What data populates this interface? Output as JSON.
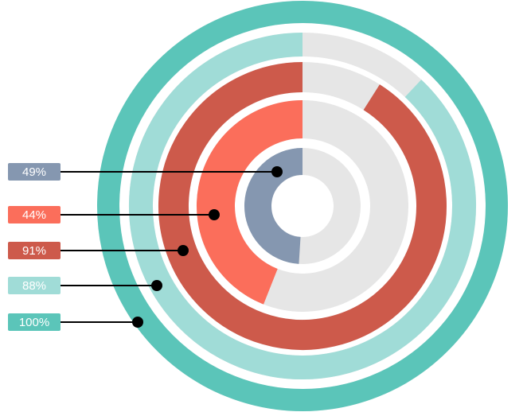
{
  "chart_data": {
    "type": "radial-bar",
    "rings": [
      {
        "label": "100%",
        "value": 100,
        "color": "#5bc5b9"
      },
      {
        "label": "88%",
        "value": 88,
        "color": "#a0dcd7"
      },
      {
        "label": "91%",
        "value": 91,
        "color": "#cd5a4b"
      },
      {
        "label": "44%",
        "value": 44,
        "color": "#fb6e5b"
      },
      {
        "label": "49%",
        "value": 49,
        "color": "#8597b0"
      }
    ],
    "track_color": "#e6e6e6",
    "legend_placement": "left"
  }
}
